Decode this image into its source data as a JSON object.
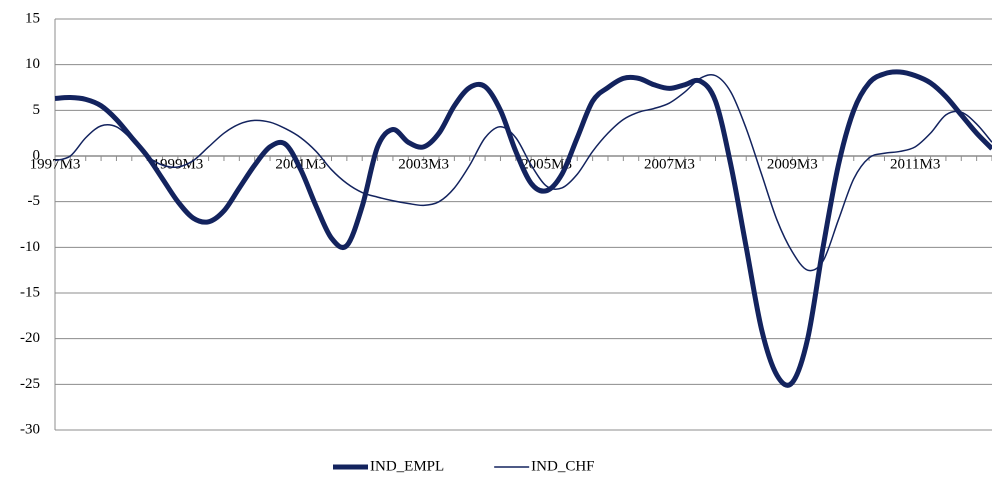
{
  "chart_data": {
    "type": "line",
    "categories": [
      "1997M3",
      null,
      null,
      null,
      null,
      null,
      null,
      null,
      "1999M3",
      null,
      null,
      null,
      null,
      null,
      null,
      null,
      "2001M3",
      null,
      null,
      null,
      null,
      null,
      null,
      null,
      "2003M3",
      null,
      null,
      null,
      null,
      null,
      null,
      null,
      "2005M3",
      null,
      null,
      null,
      null,
      null,
      null,
      null,
      "2007M3",
      null,
      null,
      null,
      null,
      null,
      null,
      null,
      "2009M3",
      null,
      null,
      null,
      null,
      null,
      null,
      null,
      "2011M3",
      null,
      null,
      null,
      null,
      null
    ],
    "series": [
      {
        "name": "IND_EMPL",
        "color": "#13235e",
        "width": 5,
        "values": [
          6.3,
          6.4,
          6.2,
          5.5,
          4,
          2,
          0,
          -2.5,
          -5,
          -6.8,
          -7.2,
          -6,
          -3.5,
          -1,
          1,
          1.3,
          -1.5,
          -5.5,
          -9,
          -9.8,
          -5.5,
          1,
          2.9,
          1.5,
          1,
          2.5,
          5.5,
          7.5,
          7.6,
          5,
          0.5,
          -3,
          -3.8,
          -2,
          2,
          6,
          7.5,
          8.5,
          8.5,
          7.8,
          7.4,
          7.8,
          8.2,
          6,
          -1,
          -10,
          -19,
          -24,
          -24.8,
          -20,
          -10,
          -1,
          5,
          8,
          9,
          9.2,
          8.8,
          8,
          6.5,
          4.5,
          2.5,
          0.8
        ]
      },
      {
        "name": "IND_CHF",
        "color": "#13235e",
        "width": 1.5,
        "values": [
          -0.5,
          0,
          2,
          3.3,
          3.2,
          1.8,
          0,
          -1,
          -1.2,
          -0.5,
          1,
          2.5,
          3.5,
          3.9,
          3.7,
          3,
          2,
          0.5,
          -1.5,
          -3,
          -4,
          -4.5,
          -4.9,
          -5.2,
          -5.4,
          -5,
          -3.5,
          -1,
          2,
          3.2,
          2,
          -1,
          -3.3,
          -3.5,
          -2,
          0.5,
          2.5,
          4,
          4.8,
          5.2,
          5.8,
          7,
          8.5,
          8.8,
          7,
          3,
          -2,
          -7,
          -10.5,
          -12.5,
          -11.5,
          -7,
          -2.5,
          -0.2,
          0.3,
          0.5,
          1,
          2.5,
          4.5,
          4.8,
          3.5,
          1.5
        ]
      }
    ],
    "ylim": [
      -30,
      15
    ],
    "yticks": [
      -30,
      -25,
      -20,
      -15,
      -10,
      -5,
      0,
      5,
      10,
      15
    ],
    "grid": true,
    "legend": "bottom"
  }
}
